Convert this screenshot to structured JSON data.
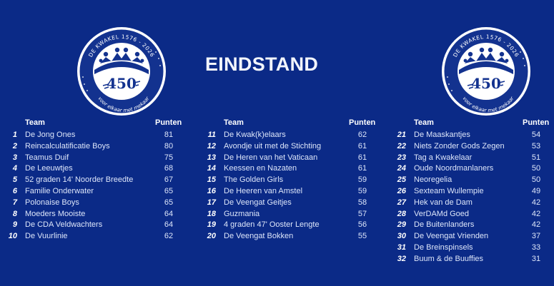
{
  "title": "EINDSTAND",
  "logo": {
    "top_text": "DE KWAKEL  1576 - 2026",
    "number": "450",
    "bottom_text": "voor elkaar  met mekaar"
  },
  "headers": {
    "team": "Team",
    "points": "Punten"
  },
  "columns": [
    {
      "rows": [
        {
          "rank": "1",
          "team": "De Jong Ones",
          "points": "81"
        },
        {
          "rank": "2",
          "team": "Reincalculatificatie Boys",
          "points": "80"
        },
        {
          "rank": "3",
          "team": "Teamus Duif",
          "points": "75"
        },
        {
          "rank": "4",
          "team": "De Leeuwtjes",
          "points": "68"
        },
        {
          "rank": "5",
          "team": "52 graden 14' Noorder Breedte",
          "points": "67"
        },
        {
          "rank": "6",
          "team": "Familie Onderwater",
          "points": "65"
        },
        {
          "rank": "7",
          "team": "Polonaise Boys",
          "points": "65"
        },
        {
          "rank": "8",
          "team": "Moeders Mooiste",
          "points": "64"
        },
        {
          "rank": "9",
          "team": "De CDA Veldwachters",
          "points": "64"
        },
        {
          "rank": "10",
          "team": "De Vuurlinie",
          "points": "62"
        }
      ]
    },
    {
      "rows": [
        {
          "rank": "11",
          "team": "De Kwak(k)elaars",
          "points": "62"
        },
        {
          "rank": "12",
          "team": "Avondje uit met de Stichting",
          "points": "61"
        },
        {
          "rank": "13",
          "team": "De Heren van het Vaticaan",
          "points": "61"
        },
        {
          "rank": "14",
          "team": "Keessen en Nazaten",
          "points": "61"
        },
        {
          "rank": "15",
          "team": "The Golden Girls",
          "points": "59"
        },
        {
          "rank": "16",
          "team": "De Heeren van Amstel",
          "points": "59"
        },
        {
          "rank": "17",
          "team": "De Veengat Geitjes",
          "points": "58"
        },
        {
          "rank": "18",
          "team": "Guzmania",
          "points": "57"
        },
        {
          "rank": "19",
          "team": "4 graden 47' Ooster Lengte",
          "points": "56"
        },
        {
          "rank": "20",
          "team": "De Veengat Bokken",
          "points": "55"
        }
      ]
    },
    {
      "rows": [
        {
          "rank": "21",
          "team": "De Maaskantjes",
          "points": "54"
        },
        {
          "rank": "22",
          "team": "Niets Zonder Gods Zegen",
          "points": "53"
        },
        {
          "rank": "23",
          "team": "Tag a Kwakelaar",
          "points": "51"
        },
        {
          "rank": "24",
          "team": "Oude Noordmanlaners",
          "points": "50"
        },
        {
          "rank": "25",
          "team": "Neoregelia",
          "points": "50"
        },
        {
          "rank": "26",
          "team": "Sexteam Wullempie",
          "points": "49"
        },
        {
          "rank": "27",
          "team": "Hek van de Dam",
          "points": "42"
        },
        {
          "rank": "28",
          "team": "VerDAMd Goed",
          "points": "42"
        },
        {
          "rank": "29",
          "team": "De Buitenlanders",
          "points": "42"
        },
        {
          "rank": "30",
          "team": "De Veengat Vrienden",
          "points": "37"
        },
        {
          "rank": "31",
          "team": "De Breinspinsels",
          "points": "33"
        },
        {
          "rank": "32",
          "team": "Buum & de Buuffies",
          "points": "31"
        }
      ]
    }
  ],
  "colors": {
    "background": "#0b2a87",
    "text": "#dde6fa",
    "logo_ring": "#ffffff"
  }
}
